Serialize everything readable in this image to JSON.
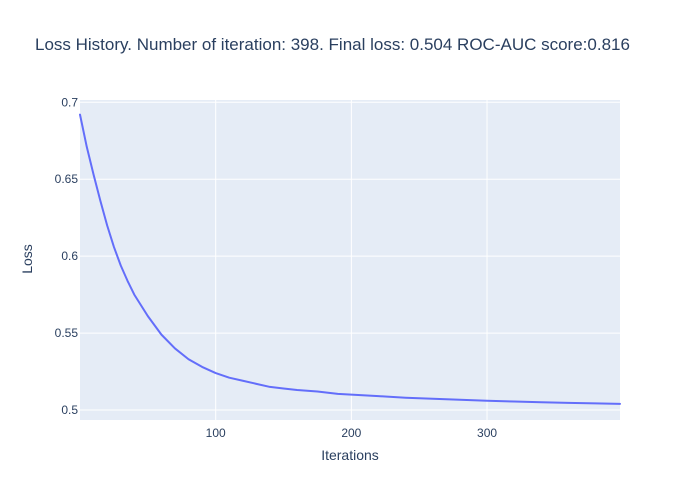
{
  "chart_data": {
    "type": "line",
    "title": "Loss History. Number of iteration: 398. Final loss: 0.504 ROC-AUC score:0.816",
    "xlabel": "Iterations",
    "ylabel": "Loss",
    "xlim": [
      0,
      398
    ],
    "ylim": [
      0.4935,
      0.7015
    ],
    "x_ticks": [
      100,
      200,
      300
    ],
    "x_tick_labels": [
      "100",
      "200",
      "300"
    ],
    "y_ticks": [
      0.5,
      0.55,
      0.6,
      0.65,
      0.7
    ],
    "y_tick_labels": [
      "0.5",
      "0.55",
      "0.6",
      "0.65",
      "0.7"
    ],
    "grid": true,
    "legend": "none",
    "series_color": "#636efa",
    "plot_background": "#e5ecf6",
    "grid_color": "#ffffff",
    "series": [
      {
        "x": [
          0,
          5,
          10,
          15,
          20,
          25,
          30,
          35,
          40,
          50,
          60,
          70,
          80,
          90,
          100,
          110,
          120,
          130,
          140,
          150,
          160,
          175,
          190,
          200,
          220,
          240,
          260,
          280,
          300,
          320,
          340,
          360,
          380,
          398
        ],
        "y": [
          0.692,
          0.671,
          0.653,
          0.636,
          0.62,
          0.606,
          0.594,
          0.584,
          0.575,
          0.561,
          0.549,
          0.54,
          0.533,
          0.528,
          0.524,
          0.521,
          0.519,
          0.517,
          0.515,
          0.514,
          0.513,
          0.512,
          0.5105,
          0.51,
          0.509,
          0.508,
          0.5073,
          0.5067,
          0.506,
          0.5055,
          0.505,
          0.5046,
          0.5043,
          0.504
        ]
      }
    ]
  }
}
